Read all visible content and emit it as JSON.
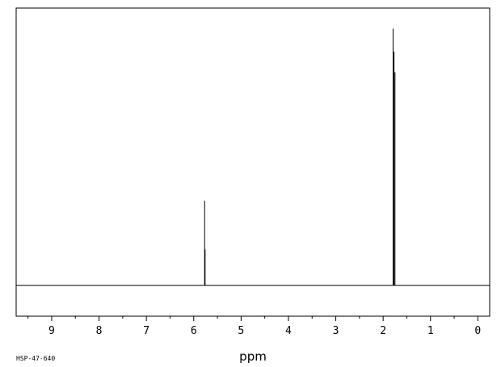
{
  "chart_data": {
    "type": "line",
    "title": "",
    "xlabel": "ppm",
    "ylabel": "",
    "xlim": [
      9.75,
      -0.25
    ],
    "x_reversed": true,
    "ylim": [
      -0.12,
      1.08
    ],
    "grid": false,
    "x_ticks_major": [
      9,
      8,
      7,
      6,
      5,
      4,
      3,
      2,
      1,
      0
    ],
    "x_ticks_minor_step": 0.5,
    "baseline": 0,
    "series": [
      {
        "values": [
          {
            "x": 5.77,
            "y": 0.33
          },
          {
            "x": 5.76,
            "y": 0.14
          },
          {
            "x": 1.79,
            "y": 1.0
          },
          {
            "x": 1.77,
            "y": 0.91
          },
          {
            "x": 1.75,
            "y": 0.83
          }
        ]
      }
    ]
  },
  "footer": {
    "spectrum_code": "HSP-47-640"
  }
}
